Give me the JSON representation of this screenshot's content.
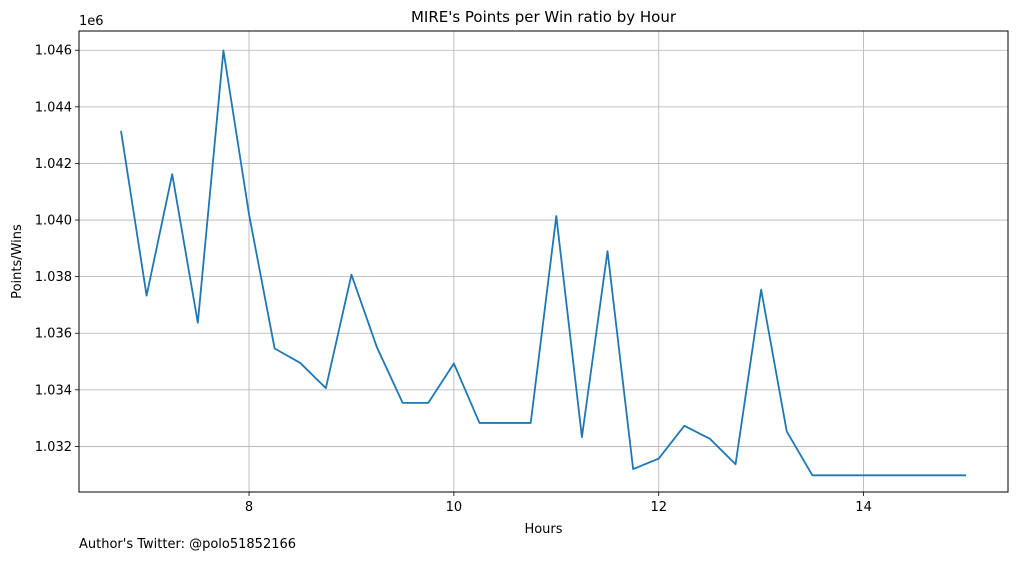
{
  "chart_data": {
    "type": "line",
    "title": "MIRE's Points per Win ratio by Hour",
    "xlabel": "Hours",
    "ylabel": "Points/Wins",
    "offset_text": "1e6",
    "grid": true,
    "xlim": [
      6.34,
      15.41
    ],
    "ylim": [
      1.03039,
      1.04668
    ],
    "xticks": [
      8,
      10,
      12,
      14
    ],
    "xtick_labels": [
      "8",
      "10",
      "12",
      "14"
    ],
    "yticks": [
      1.032,
      1.034,
      1.036,
      1.038,
      1.04,
      1.042,
      1.044,
      1.046
    ],
    "ytick_labels": [
      "1.032",
      "1.034",
      "1.036",
      "1.038",
      "1.040",
      "1.042",
      "1.044",
      "1.046"
    ],
    "line_color": "#1f77b4",
    "series": [
      {
        "x": [
          6.75,
          7.0,
          7.25,
          7.5,
          7.75,
          8.0,
          8.25,
          8.5,
          8.75,
          9.0,
          9.25,
          9.5,
          9.75,
          10.0,
          10.25,
          10.5,
          10.75,
          11.0,
          11.25,
          11.5,
          11.75,
          12.0,
          12.25,
          12.5,
          12.75,
          13.0,
          13.25,
          13.5,
          13.75,
          14.0,
          14.25,
          14.5,
          14.75,
          15.0
        ],
        "values": [
          1.04315,
          1.03733,
          1.04162,
          1.03637,
          1.04599,
          1.0402,
          1.03546,
          1.03495,
          1.03406,
          1.03807,
          1.03549,
          1.03354,
          1.03354,
          1.03493,
          1.03283,
          1.03283,
          1.03283,
          1.04014,
          1.03233,
          1.0389,
          1.0312,
          1.03157,
          1.03273,
          1.03227,
          1.03137,
          1.03754,
          1.03253,
          1.03098,
          1.03098,
          1.03098,
          1.03098,
          1.03098,
          1.03098,
          1.03098
        ]
      }
    ]
  },
  "footer": {
    "author_note": "Author's Twitter: @polo51852166"
  }
}
